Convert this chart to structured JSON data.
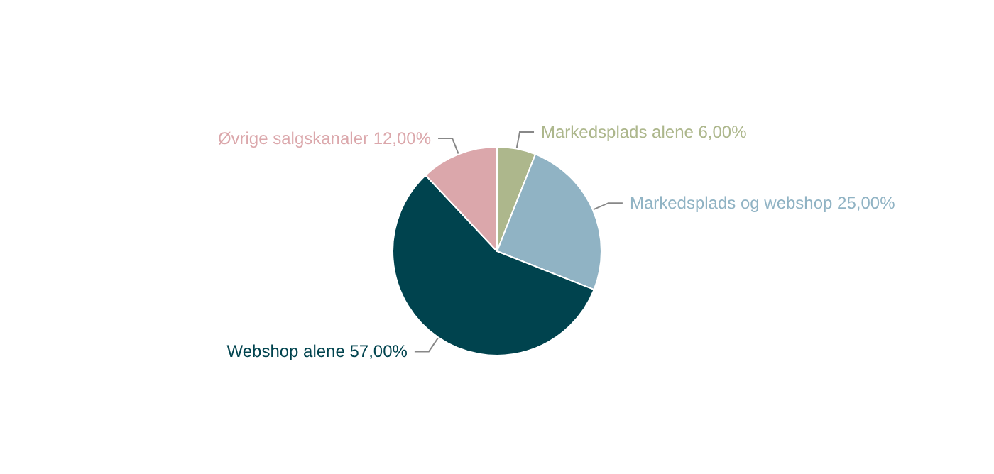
{
  "chart_data": {
    "type": "pie",
    "categories": [
      "Markedsplads alene",
      "Markedsplads og webshop",
      "Webshop alene",
      "Øvrige salgskanaler"
    ],
    "values": [
      6,
      25,
      57,
      12
    ],
    "value_labels": [
      "6,00%",
      "25,00%",
      "57,00%",
      "12,00%"
    ],
    "colors": [
      "#adb78c",
      "#90b3c4",
      "#00434e",
      "#dba7ab"
    ],
    "legend": false
  }
}
